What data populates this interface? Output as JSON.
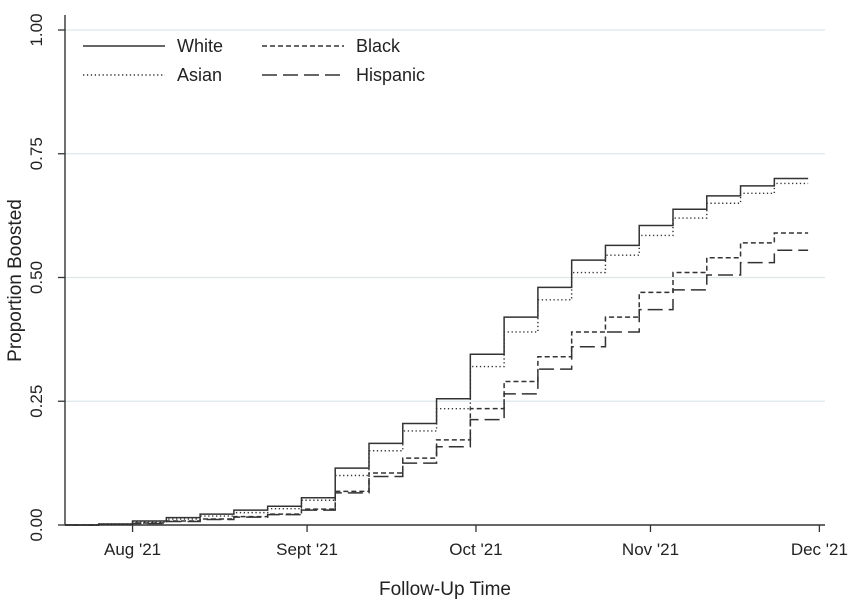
{
  "chart_data": {
    "type": "line",
    "step": true,
    "xlabel": "Follow-Up Time",
    "ylabel": "Proportion Boosted",
    "x_ticks": [
      {
        "date": "2021-08-01",
        "label": "Aug '21"
      },
      {
        "date": "2021-09-01",
        "label": "Sept '21"
      },
      {
        "date": "2021-10-01",
        "label": "Oct '21"
      },
      {
        "date": "2021-11-01",
        "label": "Nov '21"
      },
      {
        "date": "2021-12-01",
        "label": "Dec '21"
      }
    ],
    "xlim": [
      "2021-07-20",
      "2021-12-02"
    ],
    "y_ticks": [
      {
        "value": 0,
        "label": "0.00"
      },
      {
        "value": 0.25,
        "label": "0.25"
      },
      {
        "value": 0.5,
        "label": "0.50"
      },
      {
        "value": 0.75,
        "label": "0.75"
      },
      {
        "value": 1,
        "label": "1.00"
      }
    ],
    "ylim": [
      0,
      1
    ],
    "grid": "horizontal",
    "legend_position": "top-left",
    "colors": {
      "line": "#333333",
      "grid": "#dde7ea",
      "axis": "#333333"
    },
    "series": [
      {
        "name": "White",
        "style": "solid",
        "points": [
          [
            "2021-07-20",
            0.0
          ],
          [
            "2021-07-26",
            0.002
          ],
          [
            "2021-08-01",
            0.008
          ],
          [
            "2021-08-07",
            0.015
          ],
          [
            "2021-08-13",
            0.022
          ],
          [
            "2021-08-19",
            0.03
          ],
          [
            "2021-08-25",
            0.038
          ],
          [
            "2021-08-31",
            0.055
          ],
          [
            "2021-09-06",
            0.115
          ],
          [
            "2021-09-12",
            0.165
          ],
          [
            "2021-09-18",
            0.205
          ],
          [
            "2021-09-24",
            0.255
          ],
          [
            "2021-09-30",
            0.345
          ],
          [
            "2021-10-06",
            0.42
          ],
          [
            "2021-10-12",
            0.48
          ],
          [
            "2021-10-18",
            0.535
          ],
          [
            "2021-10-24",
            0.565
          ],
          [
            "2021-10-30",
            0.605
          ],
          [
            "2021-11-05",
            0.638
          ],
          [
            "2021-11-11",
            0.665
          ],
          [
            "2021-11-17",
            0.685
          ],
          [
            "2021-11-23",
            0.7
          ],
          [
            "2021-11-29",
            0.7
          ]
        ]
      },
      {
        "name": "Black",
        "style": "dashed",
        "points": [
          [
            "2021-07-20",
            0.0
          ],
          [
            "2021-07-26",
            0.001
          ],
          [
            "2021-08-01",
            0.004
          ],
          [
            "2021-08-07",
            0.008
          ],
          [
            "2021-08-13",
            0.012
          ],
          [
            "2021-08-19",
            0.017
          ],
          [
            "2021-08-25",
            0.022
          ],
          [
            "2021-08-31",
            0.032
          ],
          [
            "2021-09-06",
            0.068
          ],
          [
            "2021-09-12",
            0.105
          ],
          [
            "2021-09-18",
            0.135
          ],
          [
            "2021-09-24",
            0.172
          ],
          [
            "2021-09-30",
            0.235
          ],
          [
            "2021-10-06",
            0.29
          ],
          [
            "2021-10-12",
            0.34
          ],
          [
            "2021-10-18",
            0.39
          ],
          [
            "2021-10-24",
            0.42
          ],
          [
            "2021-10-30",
            0.47
          ],
          [
            "2021-11-05",
            0.51
          ],
          [
            "2021-11-11",
            0.54
          ],
          [
            "2021-11-17",
            0.57
          ],
          [
            "2021-11-23",
            0.59
          ],
          [
            "2021-11-29",
            0.59
          ]
        ]
      },
      {
        "name": "Asian",
        "style": "dotted",
        "points": [
          [
            "2021-07-20",
            0.0
          ],
          [
            "2021-07-26",
            0.002
          ],
          [
            "2021-08-01",
            0.006
          ],
          [
            "2021-08-07",
            0.012
          ],
          [
            "2021-08-13",
            0.018
          ],
          [
            "2021-08-19",
            0.025
          ],
          [
            "2021-08-25",
            0.033
          ],
          [
            "2021-08-31",
            0.05
          ],
          [
            "2021-09-06",
            0.1
          ],
          [
            "2021-09-12",
            0.15
          ],
          [
            "2021-09-18",
            0.19
          ],
          [
            "2021-09-24",
            0.235
          ],
          [
            "2021-09-30",
            0.32
          ],
          [
            "2021-10-06",
            0.39
          ],
          [
            "2021-10-12",
            0.455
          ],
          [
            "2021-10-18",
            0.51
          ],
          [
            "2021-10-24",
            0.545
          ],
          [
            "2021-10-30",
            0.585
          ],
          [
            "2021-11-05",
            0.62
          ],
          [
            "2021-11-11",
            0.65
          ],
          [
            "2021-11-17",
            0.67
          ],
          [
            "2021-11-23",
            0.69
          ],
          [
            "2021-11-29",
            0.69
          ]
        ]
      },
      {
        "name": "Hispanic",
        "style": "longdash",
        "points": [
          [
            "2021-07-20",
            0.0
          ],
          [
            "2021-07-26",
            0.001
          ],
          [
            "2021-08-01",
            0.003
          ],
          [
            "2021-08-07",
            0.007
          ],
          [
            "2021-08-13",
            0.011
          ],
          [
            "2021-08-19",
            0.016
          ],
          [
            "2021-08-25",
            0.021
          ],
          [
            "2021-08-31",
            0.03
          ],
          [
            "2021-09-06",
            0.065
          ],
          [
            "2021-09-12",
            0.098
          ],
          [
            "2021-09-18",
            0.125
          ],
          [
            "2021-09-24",
            0.158
          ],
          [
            "2021-09-30",
            0.213
          ],
          [
            "2021-10-06",
            0.265
          ],
          [
            "2021-10-12",
            0.315
          ],
          [
            "2021-10-18",
            0.36
          ],
          [
            "2021-10-24",
            0.39
          ],
          [
            "2021-10-30",
            0.435
          ],
          [
            "2021-11-05",
            0.475
          ],
          [
            "2021-11-11",
            0.505
          ],
          [
            "2021-11-17",
            0.53
          ],
          [
            "2021-11-23",
            0.555
          ],
          [
            "2021-11-29",
            0.555
          ]
        ]
      }
    ]
  }
}
